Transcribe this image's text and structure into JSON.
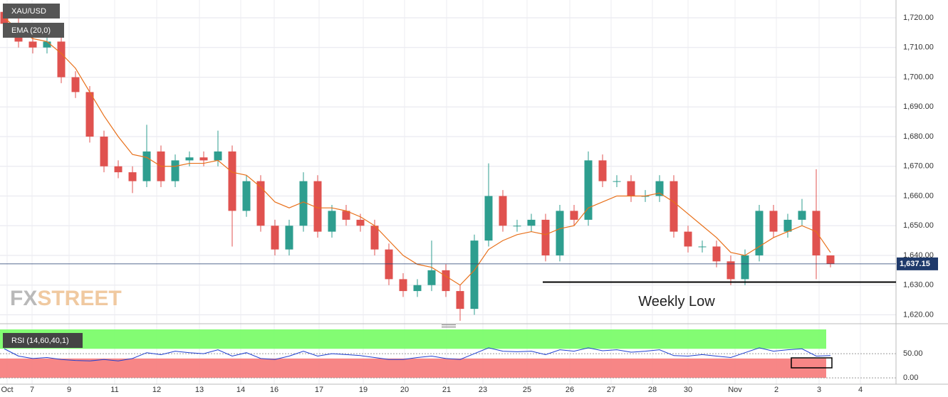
{
  "chart_data": {
    "type": "candlestick",
    "title": "XAU/USD",
    "ema_label": "EMA (20,0)",
    "watermark": [
      "FX",
      "STREET"
    ],
    "x": [
      0,
      1,
      2,
      3,
      4,
      5,
      6,
      7,
      8,
      9,
      10,
      11,
      12,
      13,
      14,
      15,
      16,
      17,
      18,
      19,
      20,
      21,
      22,
      23,
      24,
      25,
      26,
      27,
      28,
      29,
      30,
      31,
      32,
      33,
      34,
      35,
      36,
      37,
      38,
      39,
      40,
      41,
      42,
      43,
      44,
      45,
      46,
      47,
      48,
      49,
      50,
      51,
      52,
      53,
      54,
      55,
      56,
      57,
      58
    ],
    "open": [
      1722,
      1718,
      1712,
      1710,
      1712,
      1700,
      1695,
      1680,
      1670,
      1668,
      1665,
      1675,
      1665,
      1672,
      1673,
      1672,
      1675,
      1655,
      1665,
      1650,
      1642,
      1650,
      1665,
      1648,
      1655,
      1652,
      1650,
      1642,
      1632,
      1628,
      1630,
      1635,
      1628,
      1622,
      1645,
      1660,
      1650,
      1650,
      1652,
      1640,
      1655,
      1652,
      1672,
      1665,
      1665,
      1660,
      1660,
      1665,
      1648,
      1643,
      1643,
      1638,
      1632,
      1640,
      1655,
      1648,
      1652,
      1655,
      1640
    ],
    "high": [
      1724,
      1720,
      1714,
      1714,
      1714,
      1702,
      1697,
      1682,
      1672,
      1670,
      1684,
      1677,
      1674,
      1675,
      1675,
      1682,
      1677,
      1667,
      1667,
      1652,
      1652,
      1668,
      1667,
      1657,
      1657,
      1654,
      1652,
      1644,
      1634,
      1632,
      1645,
      1637,
      1630,
      1647,
      1671,
      1662,
      1652,
      1654,
      1654,
      1657,
      1657,
      1675,
      1674,
      1667,
      1667,
      1662,
      1667,
      1667,
      1650,
      1645,
      1645,
      1640,
      1642,
      1657,
      1657,
      1654,
      1659,
      1669,
      1640
    ],
    "low": [
      1716,
      1710,
      1708,
      1708,
      1698,
      1693,
      1678,
      1668,
      1666,
      1661,
      1663,
      1663,
      1663,
      1670,
      1670,
      1670,
      1643,
      1653,
      1648,
      1640,
      1640,
      1648,
      1646,
      1646,
      1650,
      1648,
      1640,
      1630,
      1626,
      1626,
      1628,
      1626,
      1618,
      1620,
      1643,
      1648,
      1648,
      1648,
      1638,
      1638,
      1650,
      1650,
      1663,
      1663,
      1658,
      1658,
      1658,
      1646,
      1641,
      1641,
      1636,
      1630,
      1630,
      1638,
      1646,
      1646,
      1650,
      1632,
      1636
    ],
    "close": [
      1718,
      1712,
      1710,
      1712,
      1700,
      1695,
      1680,
      1670,
      1668,
      1665,
      1675,
      1665,
      1672,
      1673,
      1672,
      1675,
      1655,
      1665,
      1650,
      1642,
      1650,
      1665,
      1648,
      1655,
      1652,
      1650,
      1642,
      1632,
      1628,
      1630,
      1635,
      1628,
      1622,
      1645,
      1660,
      1650,
      1650,
      1652,
      1640,
      1655,
      1652,
      1672,
      1665,
      1665,
      1660,
      1660,
      1665,
      1648,
      1643,
      1643,
      1638,
      1632,
      1640,
      1655,
      1648,
      1652,
      1655,
      1640,
      1637.15
    ],
    "up_color": "#2e9e8f",
    "down_color": "#e0524f",
    "ema": {
      "color": "#e8701a",
      "values": [
        1720,
        1716,
        1713,
        1712,
        1708,
        1703,
        1695,
        1687,
        1680,
        1674,
        1673,
        1670,
        1670,
        1671,
        1671,
        1672,
        1668,
        1667,
        1663,
        1658,
        1656,
        1658,
        1656,
        1656,
        1655,
        1653,
        1650,
        1645,
        1640,
        1637,
        1636,
        1633,
        1630,
        1635,
        1642,
        1645,
        1647,
        1648,
        1647,
        1649,
        1650,
        1656,
        1658,
        1660,
        1660,
        1660,
        1661,
        1658,
        1654,
        1650,
        1646,
        1641,
        1640,
        1643,
        1646,
        1648,
        1650,
        1648,
        1641
      ]
    },
    "last_price": {
      "value": 1637.15,
      "label": "1,637.15"
    },
    "annotation": {
      "text": "Weekly Low",
      "value": 1631,
      "x_start": 37.8
    },
    "xlim": [
      -0.3,
      62.6
    ],
    "xticks": [
      {
        "value": 0.2,
        "label": "Oct"
      },
      {
        "value": 1.95,
        "label": "7"
      },
      {
        "value": 4.55,
        "label": "9"
      },
      {
        "value": 7.75,
        "label": "11"
      },
      {
        "value": 10.7,
        "label": "12"
      },
      {
        "value": 13.7,
        "label": "13"
      },
      {
        "value": 16.6,
        "label": "14"
      },
      {
        "value": 18.95,
        "label": "16"
      },
      {
        "value": 22.1,
        "label": "17"
      },
      {
        "value": 25.2,
        "label": "19"
      },
      {
        "value": 28.1,
        "label": "20"
      },
      {
        "value": 31.05,
        "label": "21"
      },
      {
        "value": 33.6,
        "label": "23"
      },
      {
        "value": 36.7,
        "label": "25"
      },
      {
        "value": 39.7,
        "label": "26"
      },
      {
        "value": 42.6,
        "label": "27"
      },
      {
        "value": 45.5,
        "label": "28"
      },
      {
        "value": 48,
        "label": "30"
      },
      {
        "value": 51.3,
        "label": "Nov"
      },
      {
        "value": 54.2,
        "label": "2"
      },
      {
        "value": 57.2,
        "label": "3"
      },
      {
        "value": 60.1,
        "label": "4"
      }
    ],
    "ylim": [
      1617,
      1726
    ],
    "yticks": [
      {
        "value": 1620,
        "label": "1,620.00"
      },
      {
        "value": 1630,
        "label": "1,630.00"
      },
      {
        "value": 1640,
        "label": "1,640.00"
      },
      {
        "value": 1650,
        "label": "1,650.00"
      },
      {
        "value": 1660,
        "label": "1,660.00"
      },
      {
        "value": 1670,
        "label": "1,670.00"
      },
      {
        "value": 1680,
        "label": "1,680.00"
      },
      {
        "value": 1690,
        "label": "1,690.00"
      },
      {
        "value": 1700,
        "label": "1,700.00"
      },
      {
        "value": 1710,
        "label": "1,710.00"
      },
      {
        "value": 1720,
        "label": "1,720.00"
      }
    ],
    "grid": true,
    "rsi": {
      "label": "RSI (14,60,40,1)",
      "color": "#2040d0",
      "upper": 60,
      "lower": 40,
      "upper_color": "#7cfc6c",
      "lower_color": "#f77f7f",
      "values": [
        60,
        45,
        40,
        42,
        38,
        36,
        35,
        38,
        35,
        40,
        52,
        48,
        55,
        52,
        50,
        58,
        45,
        52,
        40,
        38,
        45,
        55,
        45,
        50,
        48,
        46,
        42,
        38,
        38,
        42,
        45,
        40,
        38,
        50,
        62,
        55,
        54,
        55,
        48,
        58,
        55,
        62,
        56,
        58,
        53,
        55,
        58,
        46,
        45,
        48,
        45,
        42,
        52,
        62,
        55,
        58,
        60,
        45,
        46
      ],
      "ylim": [
        -13,
        100
      ],
      "yticks": [
        {
          "value": 0,
          "label": "0.00"
        },
        {
          "value": 50,
          "label": "50.00"
        }
      ]
    }
  }
}
